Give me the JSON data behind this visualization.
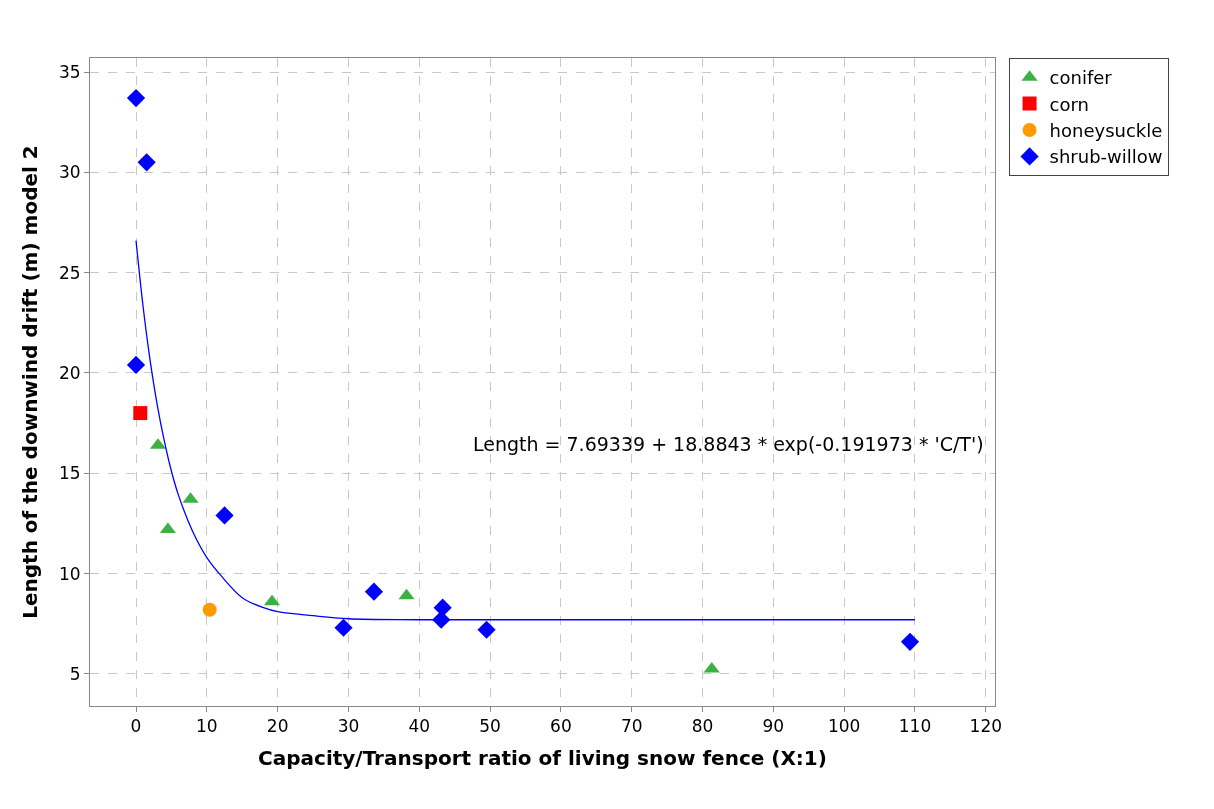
{
  "chart_data": {
    "type": "scatter",
    "xlabel": "Capacity/Transport ratio of living snow fence (X:1)",
    "ylabel": "Length of the downwind drift (m) model 2",
    "xlim": [
      -6.5,
      121.3
    ],
    "ylim": [
      3.4,
      35.7
    ],
    "xticks": [
      0,
      10,
      20,
      30,
      40,
      50,
      60,
      70,
      80,
      90,
      100,
      110,
      120
    ],
    "yticks": [
      5,
      10,
      15,
      20,
      25,
      30,
      35
    ],
    "grid": true,
    "legend": "top right",
    "annotations": [
      "Length = 7.69339 + 18.8843 * exp(-0.191973 * 'C/T')"
    ],
    "series": [
      {
        "name": "conifer",
        "color": "#3cb043",
        "marker": "triangle",
        "x": [
          3.1,
          4.5,
          7.7,
          19.2,
          38.2,
          81.3
        ],
        "values": [
          16.4,
          12.2,
          13.7,
          8.6,
          8.9,
          5.25
        ]
      },
      {
        "name": "corn",
        "color": "#ff0000",
        "marker": "square",
        "x": [
          0.6
        ],
        "values": [
          18.0
        ]
      },
      {
        "name": "honeysuckle",
        "color": "#ff9900",
        "marker": "circle",
        "x": [
          10.4
        ],
        "values": [
          8.2
        ]
      },
      {
        "name": "shrub-willow",
        "color": "#0000ff",
        "marker": "diamond",
        "x": [
          0,
          1.5,
          0,
          12.5,
          29.3,
          33.6,
          43.3,
          43.1,
          49.5,
          109.3
        ],
        "values": [
          33.7,
          30.5,
          20.4,
          12.9,
          7.3,
          9.1,
          8.3,
          7.7,
          7.2,
          6.6
        ]
      },
      {
        "type": "line",
        "color": "#0000ff",
        "marker": "none",
        "x": [
          0,
          1,
          2,
          3,
          4,
          5,
          6,
          8,
          10,
          12,
          15,
          18,
          20,
          25,
          30,
          40,
          110
        ],
        "values": [
          26.6,
          23.3,
          20.6,
          18.4,
          16.6,
          15.1,
          13.9,
          12.1,
          10.8,
          9.9,
          8.8,
          8.3,
          8.1,
          7.9,
          7.75,
          7.7,
          7.7
        ]
      }
    ]
  }
}
